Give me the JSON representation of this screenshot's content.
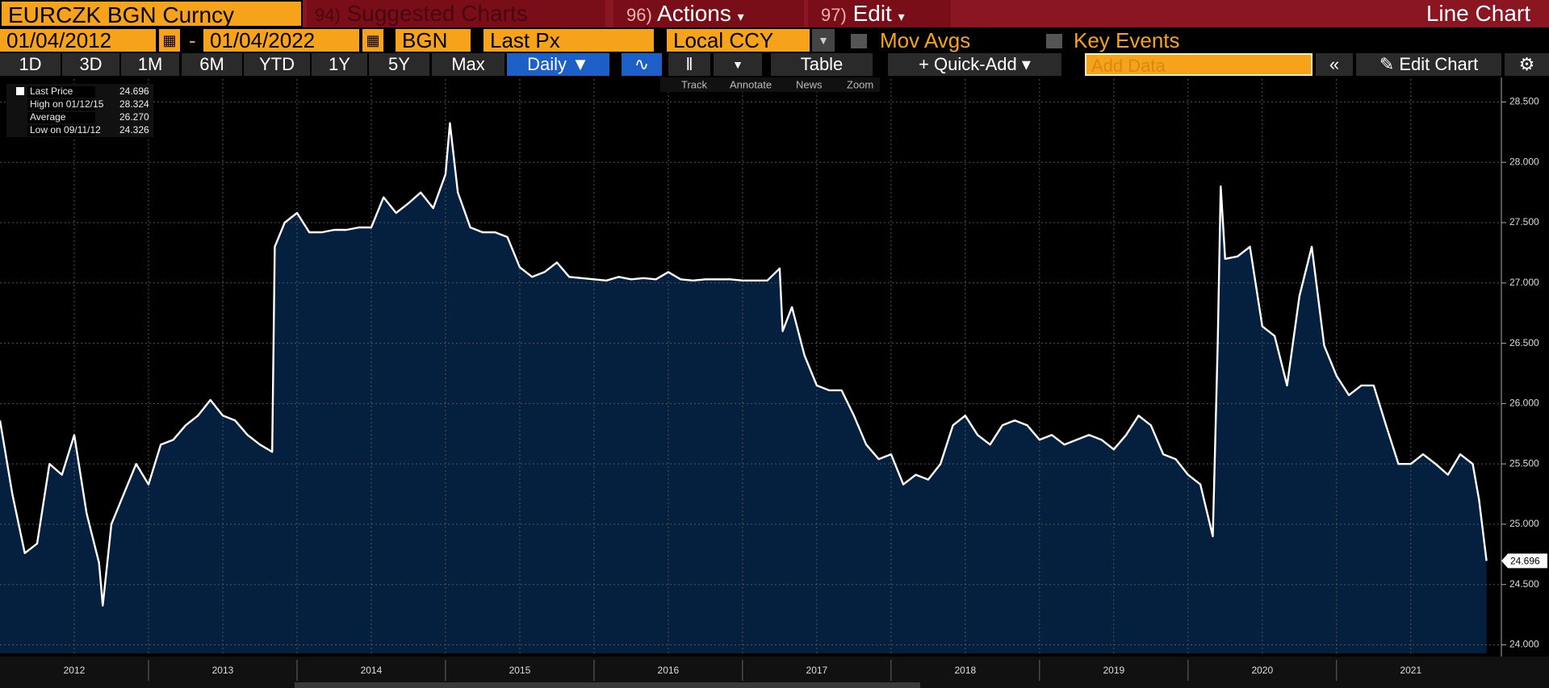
{
  "toolbar": {
    "ticker": "EURCZK BGN Curncy",
    "menus": [
      {
        "num": "94)",
        "label": "Suggested Charts"
      },
      {
        "num": "96)",
        "label": "Actions"
      },
      {
        "num": "97)",
        "label": "Edit"
      }
    ],
    "view": "Line Chart",
    "start_date": "01/04/2012",
    "date_sep": "-",
    "end_date": "01/04/2022",
    "source": "BGN",
    "field": "Last Px",
    "currency": "Local CCY",
    "mov_avgs": "Mov Avgs",
    "key_events": "Key Events",
    "ranges": [
      "1D",
      "3D",
      "1M",
      "6M",
      "YTD",
      "1Y",
      "5Y",
      "Max"
    ],
    "frequency": "Daily",
    "table": "Table",
    "quick_add": "Quick-Add",
    "add_data": "Add Data",
    "edit_chart": "Edit Chart",
    "tools": [
      "Track",
      "Annotate",
      "News",
      "Zoom"
    ]
  },
  "chart_data": {
    "type": "line",
    "x": [
      2012.0,
      2012.083,
      2012.167,
      2012.25,
      2012.333,
      2012.417,
      2012.5,
      2012.583,
      2012.667,
      2012.692,
      2012.75,
      2012.833,
      2012.917,
      2013.0,
      2013.083,
      2013.167,
      2013.25,
      2013.333,
      2013.417,
      2013.5,
      2013.583,
      2013.667,
      2013.75,
      2013.833,
      2013.85,
      2013.917,
      2014.0,
      2014.083,
      2014.167,
      2014.25,
      2014.333,
      2014.417,
      2014.5,
      2014.583,
      2014.667,
      2014.75,
      2014.833,
      2014.917,
      2015.0,
      2015.03,
      2015.083,
      2015.167,
      2015.25,
      2015.333,
      2015.417,
      2015.5,
      2015.583,
      2015.667,
      2015.75,
      2015.833,
      2015.917,
      2016.0,
      2016.083,
      2016.167,
      2016.25,
      2016.333,
      2016.417,
      2016.5,
      2016.583,
      2016.667,
      2016.75,
      2016.833,
      2016.917,
      2017.0,
      2017.083,
      2017.167,
      2017.25,
      2017.27,
      2017.333,
      2017.417,
      2017.5,
      2017.583,
      2017.667,
      2017.75,
      2017.833,
      2017.917,
      2018.0,
      2018.083,
      2018.167,
      2018.25,
      2018.333,
      2018.417,
      2018.5,
      2018.583,
      2018.667,
      2018.75,
      2018.833,
      2018.917,
      2019.0,
      2019.083,
      2019.167,
      2019.25,
      2019.333,
      2019.417,
      2019.5,
      2019.583,
      2019.667,
      2019.75,
      2019.833,
      2019.917,
      2020.0,
      2020.083,
      2020.167,
      2020.2,
      2020.22,
      2020.25,
      2020.333,
      2020.417,
      2020.5,
      2020.583,
      2020.667,
      2020.75,
      2020.833,
      2020.917,
      2021.0,
      2021.083,
      2021.167,
      2021.25,
      2021.333,
      2021.417,
      2021.5,
      2021.583,
      2021.667,
      2021.75,
      2021.833,
      2021.917,
      2021.96,
      2022.01
    ],
    "series": [
      {
        "name": "Last Price",
        "color": "#ffffff",
        "fill": "#05203f",
        "values": [
          25.86,
          25.25,
          24.76,
          24.84,
          25.5,
          25.41,
          25.74,
          25.09,
          24.68,
          24.326,
          25.0,
          25.25,
          25.5,
          25.33,
          25.66,
          25.7,
          25.82,
          25.9,
          26.03,
          25.9,
          25.86,
          25.74,
          25.66,
          25.6,
          27.3,
          27.5,
          27.58,
          27.42,
          27.42,
          27.44,
          27.44,
          27.46,
          27.46,
          27.71,
          27.58,
          27.66,
          27.75,
          27.62,
          27.9,
          28.324,
          27.75,
          27.46,
          27.42,
          27.42,
          27.38,
          27.13,
          27.05,
          27.09,
          27.17,
          27.05,
          27.04,
          27.03,
          27.02,
          27.05,
          27.03,
          27.04,
          27.03,
          27.09,
          27.03,
          27.02,
          27.03,
          27.03,
          27.03,
          27.02,
          27.02,
          27.02,
          27.12,
          26.6,
          26.8,
          26.4,
          26.15,
          26.11,
          26.11,
          25.9,
          25.66,
          25.54,
          25.58,
          25.33,
          25.41,
          25.37,
          25.5,
          25.82,
          25.9,
          25.74,
          25.66,
          25.82,
          25.86,
          25.82,
          25.7,
          25.74,
          25.66,
          25.7,
          25.74,
          25.7,
          25.62,
          25.74,
          25.9,
          25.82,
          25.58,
          25.54,
          25.41,
          25.33,
          24.9,
          26.5,
          27.8,
          27.2,
          27.22,
          27.3,
          26.64,
          26.56,
          26.15,
          26.89,
          27.3,
          26.48,
          26.23,
          26.07,
          26.15,
          26.15,
          25.82,
          25.5,
          25.5,
          25.58,
          25.5,
          25.41,
          25.58,
          25.5,
          25.2,
          24.696
        ]
      }
    ],
    "stats": {
      "names": [
        "Last Price",
        "High on 01/12/15",
        "Average",
        "Low on 09/11/12"
      ],
      "values": [
        24.696,
        28.324,
        26.27,
        24.326
      ],
      "value_labels": [
        "24.696",
        "28.324",
        "26.270",
        "24.326"
      ]
    },
    "xlim": [
      2012,
      2022.11
    ],
    "xticks": [
      {
        "value": 2012.5,
        "label": "2012"
      },
      {
        "value": 2013.5,
        "label": "2013"
      },
      {
        "value": 2014.5,
        "label": "2014"
      },
      {
        "value": 2015.5,
        "label": "2015"
      },
      {
        "value": 2016.5,
        "label": "2016"
      },
      {
        "value": 2017.5,
        "label": "2017"
      },
      {
        "value": 2018.5,
        "label": "2018"
      },
      {
        "value": 2019.5,
        "label": "2019"
      },
      {
        "value": 2020.5,
        "label": "2020"
      },
      {
        "value": 2021.5,
        "label": "2021"
      }
    ],
    "ylim": [
      23.93,
      28.69
    ],
    "yticks": [
      {
        "value": 24,
        "label": "24.000"
      },
      {
        "value": 24.5,
        "label": "24.500"
      },
      {
        "value": 25,
        "label": "25.000"
      },
      {
        "value": 25.5,
        "label": "25.500"
      },
      {
        "value": 26,
        "label": "26.000"
      },
      {
        "value": 26.5,
        "label": "26.500"
      },
      {
        "value": 27,
        "label": "27.000"
      },
      {
        "value": 27.5,
        "label": "27.500"
      },
      {
        "value": 28,
        "label": "28.000"
      },
      {
        "value": 28.5,
        "label": "28.500"
      }
    ],
    "grid": true
  }
}
